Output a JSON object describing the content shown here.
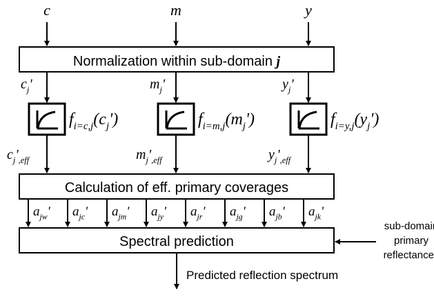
{
  "inputs": [
    "c",
    "m",
    "y"
  ],
  "normalization": {
    "text": "Normalization within sub-domain",
    "variable": "j"
  },
  "normalized": [
    {
      "base": "c",
      "sub": "j",
      "prime": "'"
    },
    {
      "base": "m",
      "sub": "j",
      "prime": "'"
    },
    {
      "base": "y",
      "sub": "j",
      "prime": "'"
    }
  ],
  "functions": [
    {
      "base": "f",
      "sub": "i=c,j",
      "open": "(",
      "arg": "c",
      "arg_sub": "j",
      "close": "')"
    },
    {
      "base": "f",
      "sub": "i=m,j",
      "open": "(",
      "arg": "m",
      "arg_sub": "j",
      "close": "')"
    },
    {
      "base": "f",
      "sub": "i=y,j",
      "open": "(",
      "arg": "y",
      "arg_sub": "j",
      "close": "')"
    }
  ],
  "effective": [
    {
      "base": "c",
      "sub": "j",
      "prime": "'",
      "sub2": ",eff"
    },
    {
      "base": "m",
      "sub": "j",
      "prime": "'",
      "sub2": ",eff"
    },
    {
      "base": "y",
      "sub": "j",
      "prime": "'",
      "sub2": ",eff"
    }
  ],
  "calculation": "Calculation of eff. primary coverages",
  "coverages": [
    {
      "base": "a",
      "sub": "jw",
      "prime": "'"
    },
    {
      "base": "a",
      "sub": "jc",
      "prime": "'"
    },
    {
      "base": "a",
      "sub": "jm",
      "prime": "'"
    },
    {
      "base": "a",
      "sub": "jy",
      "prime": "'"
    },
    {
      "base": "a",
      "sub": "jr",
      "prime": "'"
    },
    {
      "base": "a",
      "sub": "jg",
      "prime": "'"
    },
    {
      "base": "a",
      "sub": "jb",
      "prime": "'"
    },
    {
      "base": "a",
      "sub": "jk",
      "prime": "'"
    }
  ],
  "spectral": "Spectral prediction",
  "side_input": [
    "sub-domain",
    "primary",
    "reflectances"
  ],
  "output": "Predicted reflection spectrum"
}
